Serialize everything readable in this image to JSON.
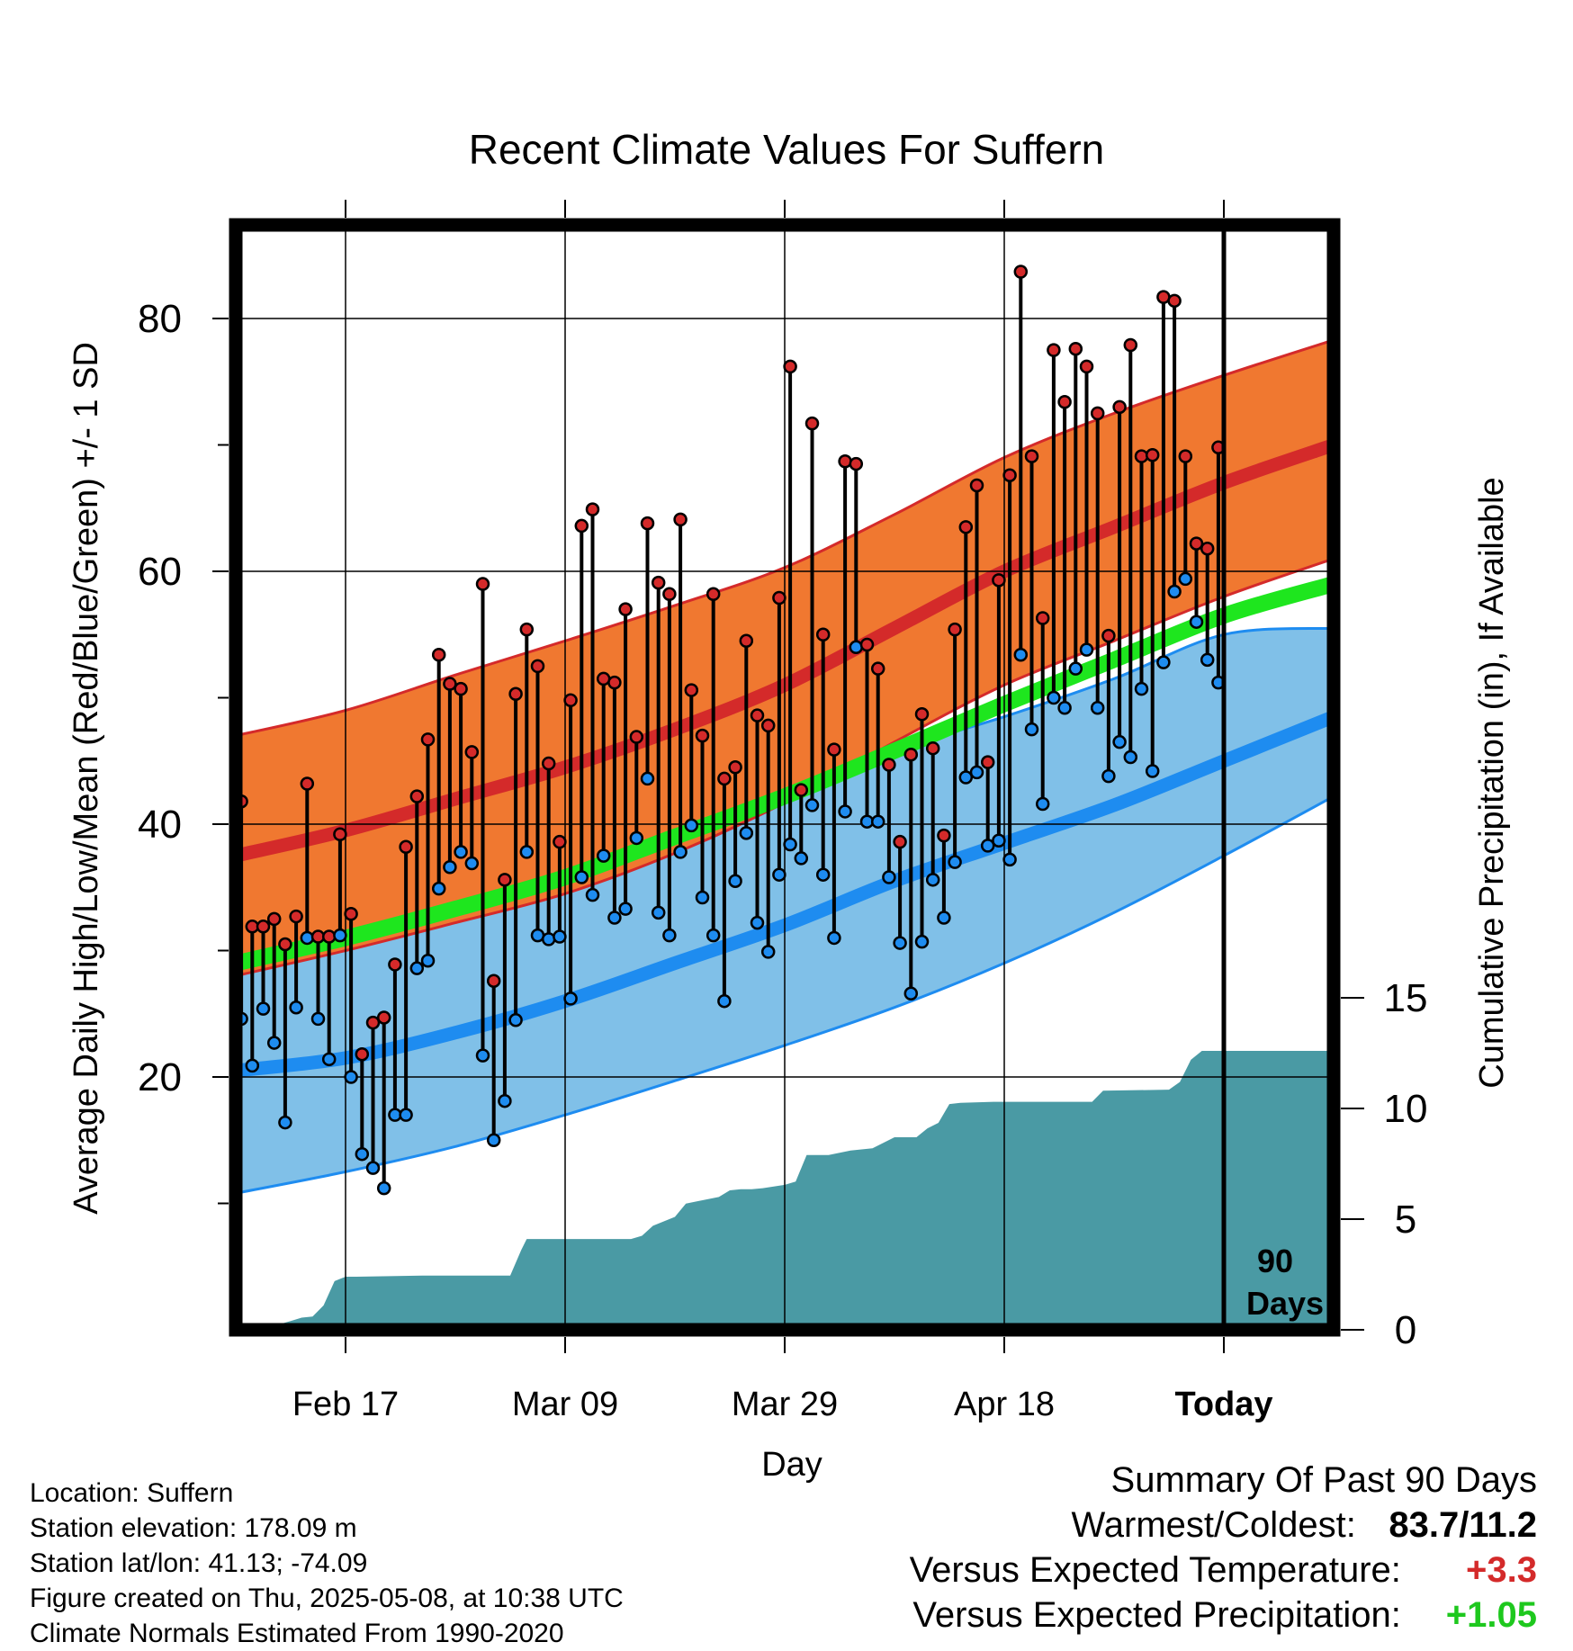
{
  "chart_data": {
    "type": "line",
    "title": "Recent Climate Values For Suffern",
    "xlabel": "Day",
    "ylabel": "Average Daily High/Low/Mean (Red/Blue/Green) +/- 1 SD",
    "y2label": "Cumulative Precipitation (in), If Available",
    "ylim": [
      0,
      87
    ],
    "y2lim": [
      0,
      18
    ],
    "xlim": [
      0,
      100
    ],
    "x_tick_positions": [
      10,
      30,
      50,
      70,
      90
    ],
    "x_tick_labels": [
      "Feb 17",
      "Mar 09",
      "Mar 29",
      "Apr 18",
      "Today"
    ],
    "y_tick_labels": [
      "20",
      "40",
      "60",
      "80"
    ],
    "y_tick_values": [
      20,
      40,
      60,
      80
    ],
    "y_minor_ticks": [
      10,
      30,
      50,
      70
    ],
    "y2_tick_labels": [
      "0",
      "5",
      "10",
      "15"
    ],
    "y2_tick_values": [
      0,
      5,
      10,
      15
    ],
    "grid": true,
    "today_x": 90,
    "period_label_line1": "90",
    "period_label_line2": "Days",
    "colors": {
      "high_band": "#f07830",
      "high_mean": "#d42a2a",
      "low_band": "#80c0e8",
      "low_mean": "#1e8cf0",
      "mean_line": "#1ee61e",
      "precip": "#4a9aa4",
      "high_dot": "#d42a2a",
      "low_dot": "#1e8cf0"
    },
    "normal_x": [
      0,
      10,
      20,
      30,
      40,
      50,
      60,
      70,
      80,
      90,
      100
    ],
    "normal_high": [
      37.5,
      39.5,
      42,
      44.5,
      47.5,
      51,
      55.5,
      60,
      63.5,
      67,
      70
    ],
    "normal_high_sd_upper": [
      47,
      49,
      51.8,
      54.5,
      57.3,
      60.3,
      64.5,
      69,
      72.5,
      75.5,
      78.3
    ],
    "normal_high_sd_lower": [
      28,
      30,
      32.2,
      34.5,
      37.7,
      41.7,
      46.5,
      51,
      54.5,
      58,
      61
    ],
    "normal_low": [
      20.5,
      21.5,
      23.5,
      26,
      29,
      32,
      35.5,
      38.5,
      41.5,
      45,
      48.5
    ],
    "normal_low_sd_upper": [
      29,
      31,
      33.5,
      36.2,
      39,
      42.3,
      45.8,
      48.5,
      51.5,
      55,
      55.5
    ],
    "normal_low_sd_lower": [
      10.8,
      12.5,
      14.5,
      17,
      19.7,
      22.5,
      25.5,
      29,
      33,
      37.5,
      42.2
    ],
    "normal_mean": [
      29,
      31,
      33.3,
      35.8,
      39,
      42.2,
      45.8,
      49.5,
      53,
      56.5,
      59
    ],
    "daily_x": [
      0,
      1,
      2,
      3,
      4,
      5,
      6,
      7,
      8,
      9,
      10,
      11,
      12,
      13,
      14,
      15,
      16,
      17,
      18,
      19,
      20,
      21,
      22,
      23,
      24,
      25,
      26,
      27,
      28,
      29,
      30,
      31,
      32,
      33,
      34,
      35,
      36,
      37,
      38,
      39,
      40,
      41,
      42,
      43,
      44,
      45,
      46,
      47,
      48,
      49,
      50,
      51,
      52,
      53,
      54,
      55,
      56,
      57,
      58,
      59,
      60,
      61,
      62,
      63,
      64,
      65,
      66,
      67,
      68,
      69,
      70,
      71,
      72,
      73,
      74,
      75,
      76,
      77,
      78,
      79,
      80,
      81,
      82,
      83,
      84,
      85,
      86,
      87,
      88,
      89
    ],
    "daily_high": [
      41.8,
      31.9,
      31.9,
      32.5,
      30.5,
      32.7,
      43.2,
      31.1,
      31.1,
      39.2,
      32.9,
      21.8,
      24.3,
      24.7,
      28.9,
      38.2,
      42.2,
      46.7,
      53.4,
      51.1,
      50.7,
      45.7,
      59,
      27.6,
      35.6,
      50.3,
      55.4,
      52.5,
      44.8,
      38.6,
      49.8,
      63.6,
      64.9,
      51.5,
      51.2,
      57,
      46.9,
      63.8,
      59.1,
      58.2,
      64.1,
      50.6,
      47,
      58.2,
      43.6,
      44.5,
      54.5,
      48.6,
      47.8,
      57.9,
      76.2,
      42.7,
      71.7,
      55,
      45.9,
      68.7,
      68.5,
      54.2,
      52.3,
      44.7,
      38.6,
      45.5,
      48.7,
      46,
      39.1,
      55.4,
      63.5,
      66.8,
      44.9,
      59.3,
      67.6,
      83.7,
      69.1,
      56.3,
      77.5,
      73.4,
      77.6,
      76.2,
      72.5,
      54.9,
      73,
      77.9,
      69.1,
      69.2,
      81.7,
      81.4,
      69.1,
      62.2,
      61.8,
      69.8
    ],
    "daily_low": [
      24.6,
      20.9,
      25.4,
      22.7,
      16.4,
      25.5,
      31,
      24.6,
      21.4,
      31.2,
      20,
      13.9,
      12.8,
      11.2,
      17,
      17,
      28.6,
      29.2,
      34.9,
      36.6,
      37.8,
      36.9,
      21.7,
      15,
      18.1,
      24.5,
      37.8,
      31.2,
      30.9,
      31.1,
      26.2,
      35.8,
      34.4,
      37.5,
      32.6,
      33.3,
      38.9,
      43.6,
      33,
      31.2,
      37.8,
      39.9,
      34.2,
      31.2,
      26,
      35.5,
      39.3,
      32.2,
      29.9,
      36,
      38.4,
      37.3,
      41.5,
      36,
      31,
      41,
      54,
      40.2,
      40.2,
      35.8,
      30.6,
      26.6,
      30.7,
      35.6,
      32.6,
      37,
      43.7,
      44.1,
      38.3,
      38.7,
      37.2,
      53.4,
      47.5,
      41.6,
      50,
      49.2,
      52.3,
      53.8,
      49.2,
      43.8,
      46.5,
      45.3,
      50.7,
      44.2,
      52.8,
      58.4,
      59.4,
      56,
      53,
      51.2
    ],
    "precip_x": [
      0,
      2,
      4,
      5,
      6,
      7,
      8,
      9,
      10,
      11,
      17,
      25,
      26,
      26.5,
      28,
      36,
      37,
      38,
      40,
      41,
      42,
      44,
      45,
      46,
      47,
      48,
      50,
      51,
      52,
      53,
      54,
      56,
      58,
      59,
      60,
      61,
      62,
      63,
      64,
      65,
      66,
      69,
      70,
      78,
      79,
      85,
      86,
      87,
      88,
      89,
      100
    ],
    "precip_y": [
      0,
      0.15,
      0.25,
      0.4,
      0.55,
      0.6,
      1.1,
      2.2,
      2.4,
      2.4,
      2.45,
      2.45,
      3.6,
      4.1,
      4.1,
      4.1,
      4.25,
      4.7,
      5.1,
      5.7,
      5.8,
      6,
      6.3,
      6.35,
      6.35,
      6.4,
      6.55,
      6.7,
      7.9,
      7.9,
      7.9,
      8.1,
      8.2,
      8.45,
      8.7,
      8.7,
      8.7,
      9.1,
      9.35,
      10.2,
      10.25,
      10.3,
      10.3,
      10.3,
      10.8,
      10.85,
      11.2,
      12.2,
      12.6,
      12.6,
      12.6
    ]
  },
  "footer": {
    "location": "Location: Suffern",
    "elevation": "Station elevation: 178.09 m",
    "latlon": "Station lat/lon: 41.13; -74.09",
    "created": "Figure created on Thu, 2025-05-08, at 10:38 UTC",
    "normals": "Climate Normals Estimated From 1990-2020"
  },
  "summary": {
    "heading": "Summary Of Past 90 Days",
    "warmest_coldest_label": "Warmest/Coldest:",
    "warmest_coldest_value": "83.7/11.2",
    "temp_label": "Versus Expected Temperature:",
    "temp_value": "+3.3",
    "temp_color": "#d42a2a",
    "precip_label": "Versus Expected Precipitation:",
    "precip_value": "+1.05",
    "precip_color": "#1ec81e"
  }
}
